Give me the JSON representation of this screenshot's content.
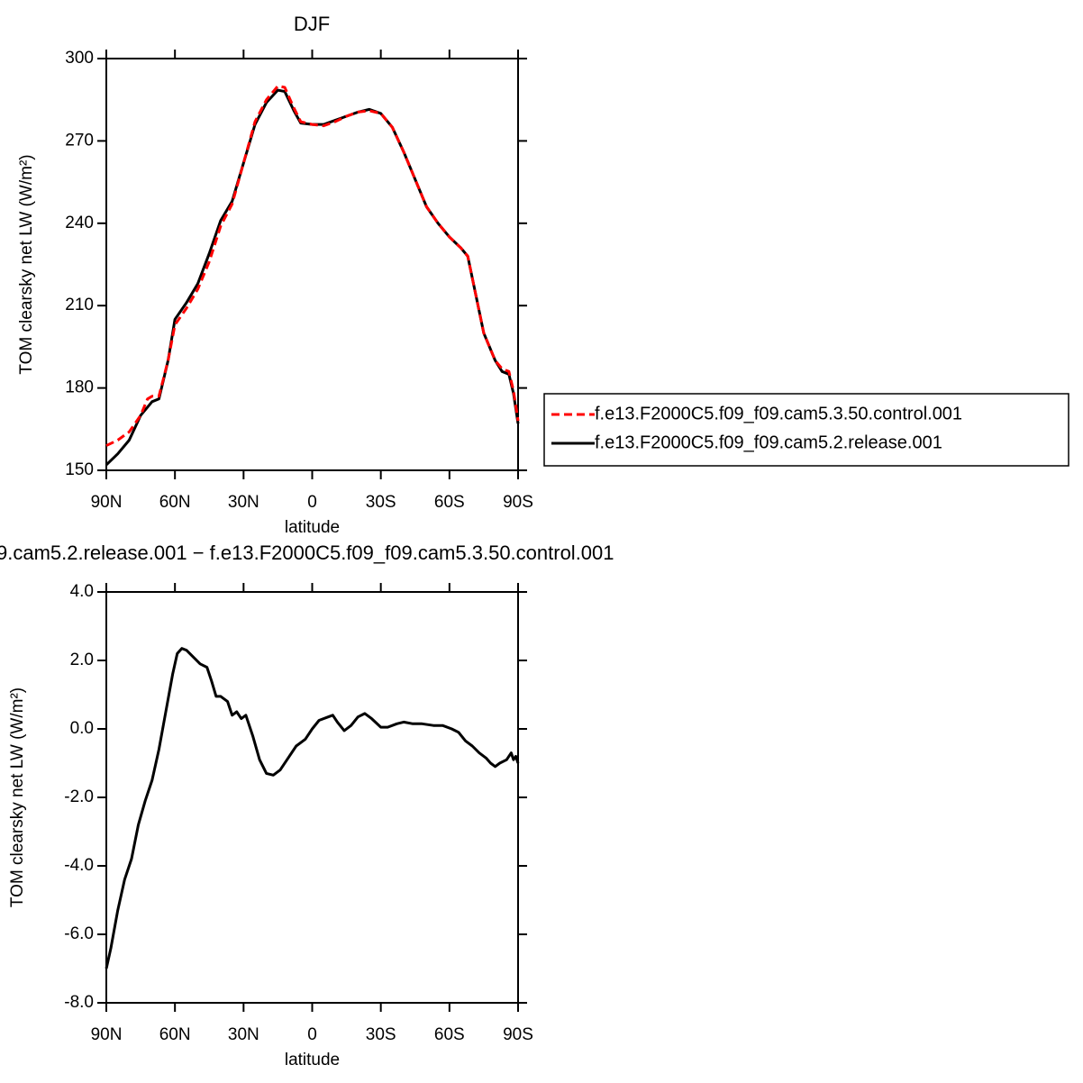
{
  "chart_data": [
    {
      "type": "line",
      "title": "DJF",
      "xlabel": "latitude",
      "ylabel": "TOM clearsky net LW (W/m²)",
      "xlim": [
        90,
        -90
      ],
      "xticks": [
        {
          "value": 90,
          "label": "90N"
        },
        {
          "value": 60,
          "label": "60N"
        },
        {
          "value": 30,
          "label": "30N"
        },
        0,
        {
          "value": -30,
          "label": "30S"
        },
        {
          "value": -60,
          "label": "60S"
        },
        {
          "value": -90,
          "label": "90S"
        }
      ],
      "ylim": [
        150,
        300
      ],
      "yticks": [
        150,
        180,
        210,
        240,
        270,
        300
      ],
      "legend": "right",
      "x": [
        90,
        85,
        80,
        75,
        72,
        70,
        67,
        63,
        60,
        55,
        50,
        45,
        40,
        35,
        30,
        25,
        20,
        15,
        12,
        8,
        5,
        0,
        -5,
        -10,
        -15,
        -20,
        -25,
        -30,
        -35,
        -40,
        -45,
        -50,
        -55,
        -60,
        -65,
        -68,
        -72,
        -75,
        -80,
        -83,
        -86,
        -88,
        -90
      ],
      "series": [
        {
          "name": "f.e13.F2000C5.f09_f09.cam5.3.50.control.001",
          "color": "#ff0000",
          "dashed": true,
          "values": [
            159,
            161,
            164,
            170,
            176,
            177,
            177,
            190,
            203,
            209,
            216,
            226,
            239,
            247,
            262,
            277,
            285,
            290,
            289.5,
            282,
            277,
            276,
            275.5,
            277,
            279,
            280.5,
            281,
            280,
            275,
            266,
            256,
            246,
            240,
            235,
            231,
            228,
            212,
            200,
            190,
            187,
            186,
            179,
            168
          ]
        },
        {
          "name": "f.e13.F2000C5.f09_f09.cam5.2.release.001",
          "color": "#000000",
          "dashed": false,
          "values": [
            152,
            156,
            161,
            170,
            173,
            175,
            176,
            190,
            205,
            211,
            218,
            229,
            241,
            248,
            262,
            276,
            284,
            288.5,
            288,
            281,
            276.5,
            276,
            276,
            277.5,
            279,
            280.5,
            281.5,
            280,
            275,
            266,
            256,
            246,
            240,
            235,
            231,
            228,
            212,
            200,
            190,
            186,
            185,
            178,
            167
          ]
        }
      ]
    },
    {
      "type": "line",
      "title": "9.cam5.2.release.001 − f.e13.F2000C5.f09_f09.cam5.3.50.control.001",
      "xlabel": "latitude",
      "ylabel": "TOM clearsky net LW (W/m²)",
      "xlim": [
        90,
        -90
      ],
      "xticks": [
        {
          "value": 90,
          "label": "90N"
        },
        {
          "value": 60,
          "label": "60N"
        },
        {
          "value": 30,
          "label": "30N"
        },
        0,
        {
          "value": -30,
          "label": "30S"
        },
        {
          "value": -60,
          "label": "60S"
        },
        {
          "value": -90,
          "label": "90S"
        }
      ],
      "ylim": [
        -8,
        4
      ],
      "yticks": [
        {
          "value": -8,
          "label": "-8.0"
        },
        {
          "value": -6,
          "label": "-6.0"
        },
        {
          "value": -4,
          "label": "-4.0"
        },
        {
          "value": -2,
          "label": "-2.0"
        },
        {
          "value": 0,
          "label": "0.0"
        },
        {
          "value": 2,
          "label": "2.0"
        },
        {
          "value": 4,
          "label": "4.0"
        }
      ],
      "x": [
        90,
        88,
        85,
        82,
        79,
        76,
        73,
        70,
        67,
        64,
        61,
        59,
        57,
        55,
        52,
        49,
        46,
        44,
        42,
        40,
        37,
        35,
        33,
        31,
        29,
        26,
        23,
        20,
        17,
        14,
        11,
        7,
        3,
        0,
        -3,
        -7,
        -9,
        -11,
        -14,
        -17,
        -20,
        -23,
        -26,
        -30,
        -33,
        -37,
        -40,
        -44,
        -48,
        -53,
        -57,
        -61,
        -64,
        -67,
        -70,
        -73,
        -76,
        -78,
        -80,
        -82,
        -85,
        -87,
        -88,
        -89,
        -90
      ],
      "series": [
        {
          "color": "#000000",
          "dashed": false,
          "values": [
            -7,
            -6.4,
            -5.3,
            -4.4,
            -3.8,
            -2.8,
            -2.1,
            -1.5,
            -0.6,
            0.5,
            1.6,
            2.2,
            2.35,
            2.3,
            2.1,
            1.9,
            1.8,
            1.4,
            0.95,
            0.95,
            0.8,
            0.4,
            0.5,
            0.3,
            0.4,
            -0.2,
            -0.9,
            -1.3,
            -1.35,
            -1.2,
            -0.9,
            -0.5,
            -0.3,
            0,
            0.25,
            0.35,
            0.4,
            0.2,
            -0.05,
            0.1,
            0.35,
            0.45,
            0.3,
            0.05,
            0.05,
            0.15,
            0.2,
            0.15,
            0.15,
            0.1,
            0.1,
            0,
            -0.1,
            -0.35,
            -0.5,
            -0.7,
            -0.85,
            -1.0,
            -1.1,
            -1.0,
            -0.9,
            -0.7,
            -0.9,
            -0.8,
            -1.0
          ]
        }
      ]
    }
  ]
}
